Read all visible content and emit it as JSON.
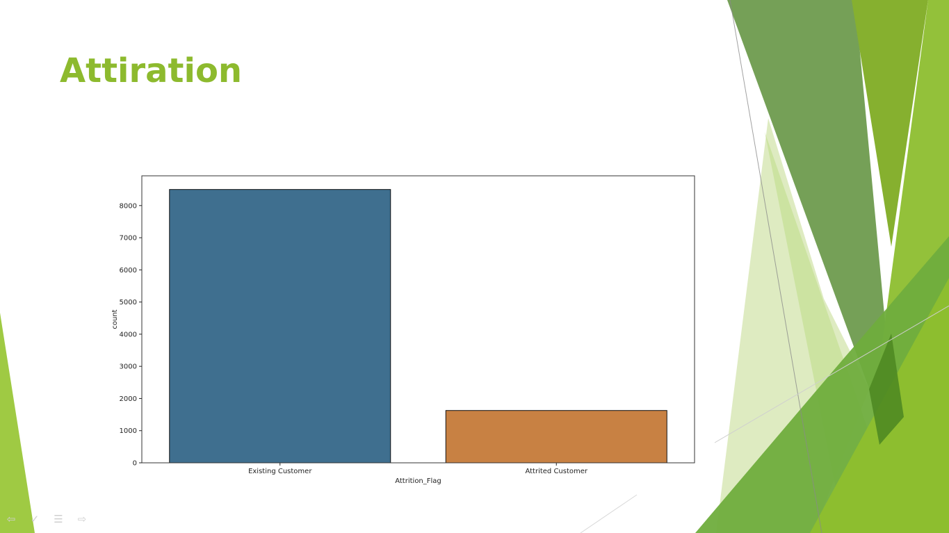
{
  "slide": {
    "title": "Attiration"
  },
  "theme": {
    "accent": "#8dba2e",
    "bar_colors": [
      "#3f6f8f",
      "#c88143"
    ]
  },
  "chart_data": {
    "type": "bar",
    "categories": [
      "Existing Customer",
      "Attrited Customer"
    ],
    "values": [
      8500,
      1627
    ],
    "xlabel": "Attrition_Flag",
    "ylabel": "count",
    "ylim": [
      0,
      8925
    ],
    "yticks": [
      0,
      1000,
      2000,
      3000,
      4000,
      5000,
      6000,
      7000,
      8000
    ],
    "grid": false
  },
  "nav": {
    "icons": [
      "arrow-left-icon",
      "pen-icon",
      "menu-icon",
      "arrow-right-icon"
    ]
  }
}
